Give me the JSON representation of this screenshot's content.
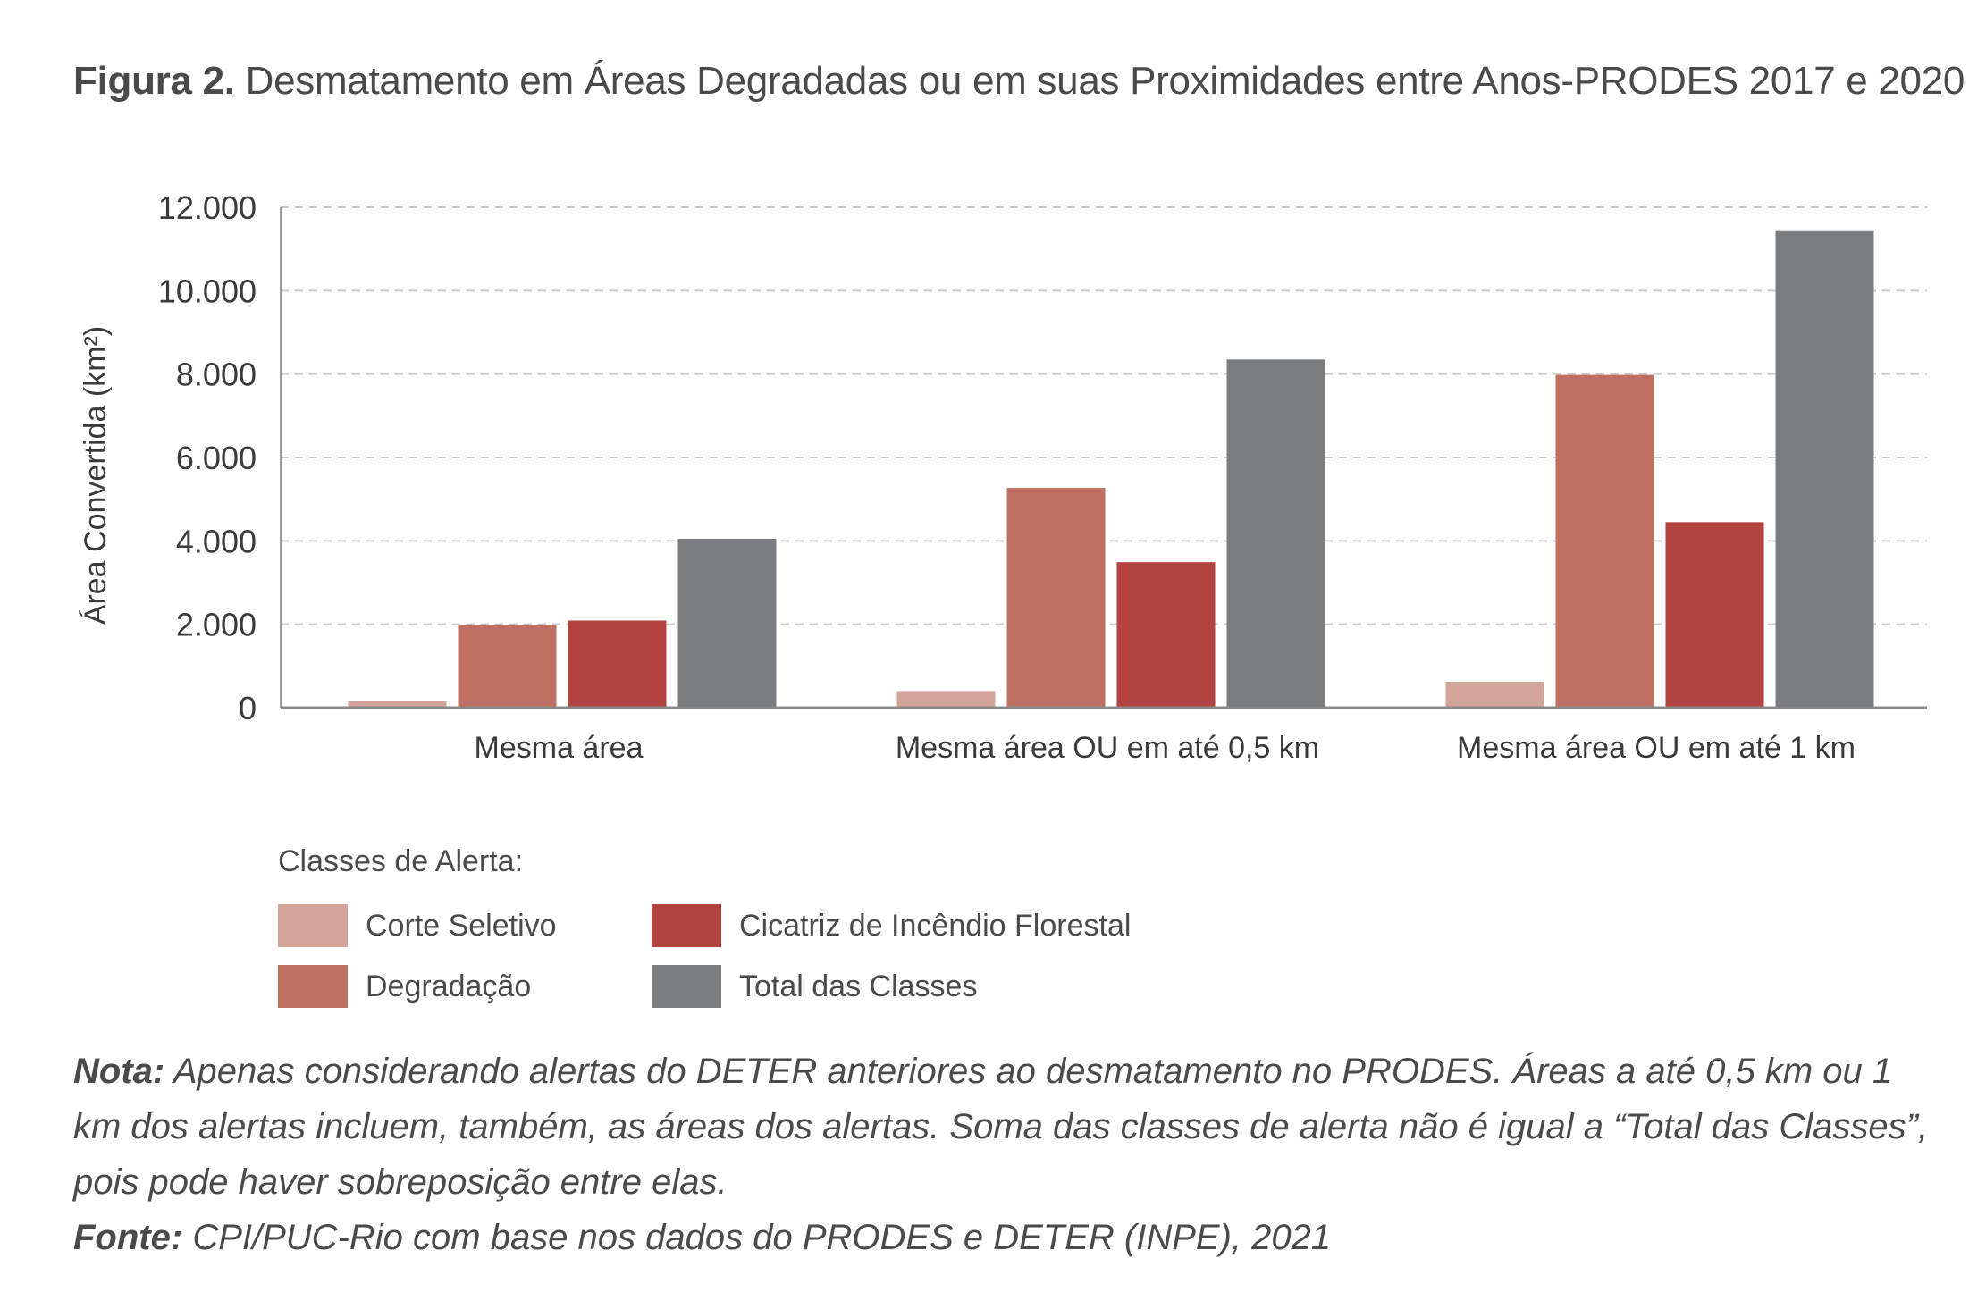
{
  "figure": {
    "label": "Figura 2.",
    "title": "Desmatamento em Áreas Degradadas ou em suas Proximidades entre Anos-PRODES 2017 e 2020"
  },
  "chart_data": {
    "type": "bar",
    "title": "",
    "xlabel": "",
    "ylabel": "Área Convertida (km²)",
    "ylim": [
      0,
      12000
    ],
    "yticks": [
      0,
      2000,
      4000,
      6000,
      8000,
      10000,
      12000
    ],
    "ytick_labels": [
      "0",
      "2.000",
      "4.000",
      "6.000",
      "8.000",
      "10.000",
      "12.000"
    ],
    "grid": "horizontal dashed",
    "legend_position": "bottom",
    "categories": [
      "Mesma área",
      "Mesma área OU em até 0,5 km",
      "Mesma área OU em até 1 km"
    ],
    "series": [
      {
        "name": "Corte Seletivo",
        "color": "#d4a49a",
        "values": [
          150,
          400,
          620
        ]
      },
      {
        "name": "Degradação",
        "color": "#c07063",
        "values": [
          1980,
          5270,
          7980
        ]
      },
      {
        "name": "Cicatriz de Incêndio Florestal",
        "color": "#b34441",
        "values": [
          2090,
          3490,
          4450
        ]
      },
      {
        "name": "Total das Classes",
        "color": "#7a7c80",
        "values": [
          4050,
          8350,
          11450
        ]
      }
    ]
  },
  "legend": {
    "heading": "Classes de Alerta:"
  },
  "notes": {
    "nota_label": "Nota:",
    "nota_text": "Apenas considerando alertas do DETER anteriores ao desmatamento no PRODES. Áreas a até 0,5 km ou 1 km dos alertas incluem, também, as áreas dos alertas. Soma das classes de alerta não é igual a “Total das Classes”, pois pode haver sobreposição entre elas.",
    "fonte_label": "Fonte:",
    "fonte_text": "CPI/PUC-Rio com base nos dados do PRODES e DETER (INPE), 2021"
  }
}
